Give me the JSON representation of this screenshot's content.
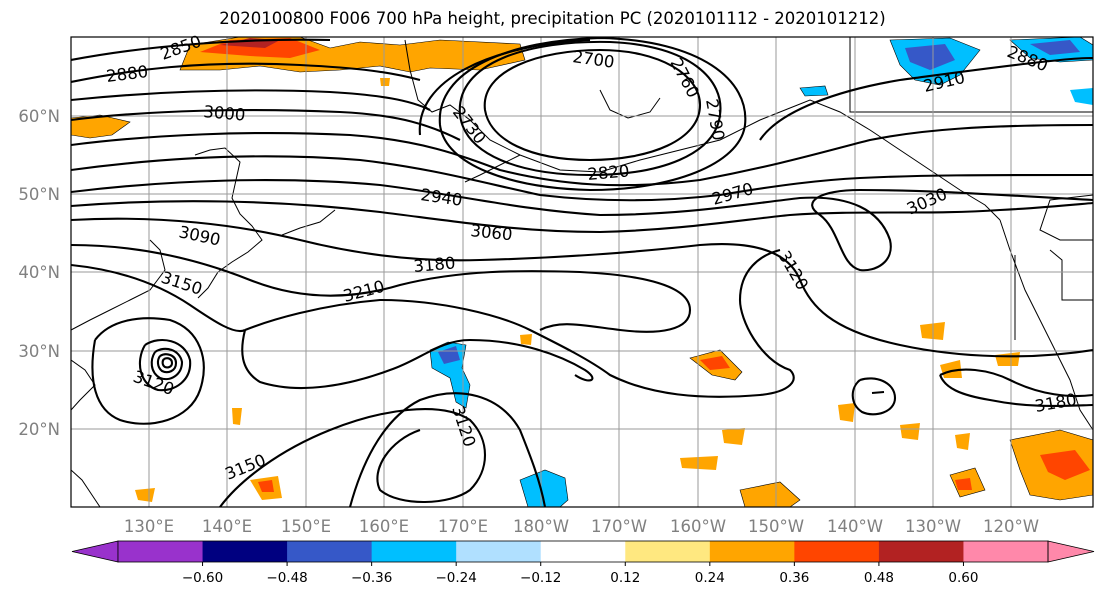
{
  "title": "2020100800 F006 700 hPa height, precipitation PC (2020101112 - 2020101212)",
  "colors": {
    "contour": "#000000",
    "grid": "#9a9a9a",
    "neg": [
      "#9932cc",
      "#000080",
      "#3658c8",
      "#00bfff",
      "#b0e0ff"
    ],
    "zero": "#ffffff",
    "pos": [
      "#ffe880",
      "#ffa500",
      "#ff4500",
      "#b22222",
      "#ff88aa"
    ]
  },
  "lat_labels": [
    "60°N",
    "50°N",
    "40°N",
    "30°N",
    "20°N"
  ],
  "lon_labels": [
    "130°E",
    "140°E",
    "150°E",
    "160°E",
    "170°E",
    "180°W",
    "170°W",
    "160°W",
    "150°W",
    "140°W",
    "130°W",
    "120°W"
  ],
  "contour_labels": [
    "2850",
    "2880",
    "3000",
    "2700",
    "2760",
    "2730",
    "2790",
    "2910",
    "2880",
    "2820",
    "2940",
    "2970",
    "3030",
    "3060",
    "3090",
    "3180",
    "3150",
    "3210",
    "3120",
    "3120",
    "3120",
    "3150",
    "3180"
  ],
  "colorbar_ticks": [
    "−0.60",
    "−0.48",
    "−0.36",
    "−0.24",
    "−0.12",
    "0.12",
    "0.24",
    "0.36",
    "0.48",
    "0.60"
  ],
  "colorbar_levels": [
    -0.6,
    -0.48,
    -0.36,
    -0.24,
    -0.12,
    0.12,
    0.24,
    0.36,
    0.48,
    0.6
  ]
}
